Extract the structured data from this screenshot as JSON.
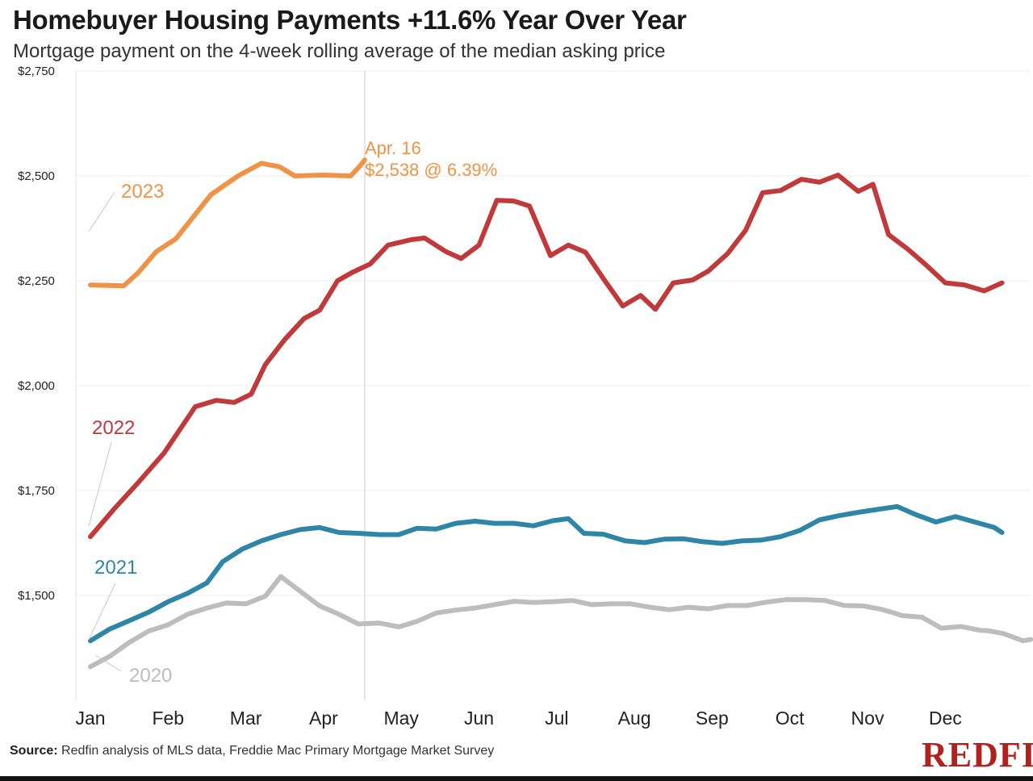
{
  "title": "Homebuyer Housing Payments +11.6% Year Over Year",
  "subtitle": "Mortgage payment on the 4-week rolling average of the median asking price",
  "source_label": "Source:",
  "source_text": " Redfin analysis of MLS data, Freddie Mac Primary Mortgage Market Survey",
  "logo": "REDFIN",
  "chart_data": {
    "type": "line",
    "title": "Homebuyer Housing Payments +11.6% Year Over Year",
    "subtitle": "Mortgage payment on the 4-week rolling average of the median asking price",
    "x_categories": [
      "Jan",
      "Feb",
      "Mar",
      "Apr",
      "May",
      "Jun",
      "Jul",
      "Aug",
      "Sep",
      "Oct",
      "Nov",
      "Dec"
    ],
    "y_ticks": [
      1500,
      1750,
      2000,
      2250,
      2500,
      2750
    ],
    "y_tick_labels": [
      "$1,500",
      "$1,750",
      "$2,000",
      "$2,250",
      "$2,500",
      "$2,750"
    ],
    "ylim": [
      1250,
      2750
    ],
    "grid": true,
    "annotation": {
      "line1": "Apr. 16",
      "line2": "$2,538 @ 6.39%",
      "date": "Apr. 16",
      "value": 2538,
      "rate": "6.39%"
    },
    "series": [
      {
        "name": "2023",
        "color": "#ef9346",
        "points": [
          [
            0.0,
            2240
          ],
          [
            0.43,
            2238
          ],
          [
            0.62,
            2270
          ],
          [
            0.85,
            2320
          ],
          [
            1.1,
            2350
          ],
          [
            1.55,
            2455
          ],
          [
            1.9,
            2500
          ],
          [
            2.2,
            2530
          ],
          [
            2.43,
            2522
          ],
          [
            2.63,
            2500
          ],
          [
            3.0,
            2502
          ],
          [
            3.35,
            2500
          ],
          [
            3.47,
            2524
          ],
          [
            3.53,
            2538
          ]
        ]
      },
      {
        "name": "2022",
        "color": "#c0393b",
        "points": [
          [
            0.0,
            1640
          ],
          [
            0.3,
            1705
          ],
          [
            0.62,
            1770
          ],
          [
            0.95,
            1840
          ],
          [
            1.35,
            1950
          ],
          [
            1.62,
            1965
          ],
          [
            1.85,
            1960
          ],
          [
            2.07,
            1980
          ],
          [
            2.25,
            2050
          ],
          [
            2.5,
            2110
          ],
          [
            2.75,
            2160
          ],
          [
            2.95,
            2180
          ],
          [
            3.18,
            2250
          ],
          [
            3.37,
            2270
          ],
          [
            3.6,
            2290
          ],
          [
            3.83,
            2335
          ],
          [
            4.13,
            2348
          ],
          [
            4.3,
            2352
          ],
          [
            4.57,
            2320
          ],
          [
            4.77,
            2303
          ],
          [
            5.0,
            2335
          ],
          [
            5.23,
            2442
          ],
          [
            5.45,
            2440
          ],
          [
            5.65,
            2428
          ],
          [
            5.92,
            2310
          ],
          [
            6.15,
            2335
          ],
          [
            6.37,
            2318
          ],
          [
            6.62,
            2250
          ],
          [
            6.85,
            2190
          ],
          [
            7.08,
            2215
          ],
          [
            7.27,
            2182
          ],
          [
            7.5,
            2245
          ],
          [
            7.75,
            2252
          ],
          [
            7.95,
            2273
          ],
          [
            8.2,
            2315
          ],
          [
            8.43,
            2370
          ],
          [
            8.65,
            2460
          ],
          [
            8.88,
            2465
          ],
          [
            9.15,
            2492
          ],
          [
            9.38,
            2485
          ],
          [
            9.62,
            2502
          ],
          [
            9.88,
            2463
          ],
          [
            10.07,
            2480
          ],
          [
            10.27,
            2360
          ],
          [
            10.52,
            2325
          ],
          [
            10.75,
            2288
          ],
          [
            11.0,
            2245
          ],
          [
            11.25,
            2240
          ],
          [
            11.5,
            2226
          ],
          [
            11.73,
            2245
          ]
        ]
      },
      {
        "name": "2021",
        "color": "#2e86a6",
        "points": [
          [
            0.0,
            1392
          ],
          [
            0.25,
            1420
          ],
          [
            0.5,
            1440
          ],
          [
            0.75,
            1460
          ],
          [
            1.0,
            1485
          ],
          [
            1.25,
            1505
          ],
          [
            1.5,
            1530
          ],
          [
            1.7,
            1580
          ],
          [
            1.95,
            1610
          ],
          [
            2.2,
            1630
          ],
          [
            2.45,
            1645
          ],
          [
            2.7,
            1657
          ],
          [
            2.95,
            1662
          ],
          [
            3.2,
            1650
          ],
          [
            3.45,
            1648
          ],
          [
            3.72,
            1645
          ],
          [
            3.97,
            1645
          ],
          [
            4.2,
            1660
          ],
          [
            4.45,
            1658
          ],
          [
            4.7,
            1672
          ],
          [
            4.95,
            1677
          ],
          [
            5.2,
            1672
          ],
          [
            5.45,
            1672
          ],
          [
            5.7,
            1666
          ],
          [
            5.95,
            1678
          ],
          [
            6.15,
            1683
          ],
          [
            6.35,
            1648
          ],
          [
            6.6,
            1646
          ],
          [
            6.88,
            1630
          ],
          [
            7.13,
            1626
          ],
          [
            7.38,
            1634
          ],
          [
            7.63,
            1635
          ],
          [
            7.88,
            1628
          ],
          [
            8.13,
            1624
          ],
          [
            8.38,
            1630
          ],
          [
            8.63,
            1632
          ],
          [
            8.88,
            1640
          ],
          [
            9.13,
            1655
          ],
          [
            9.38,
            1680
          ],
          [
            9.63,
            1690
          ],
          [
            9.88,
            1698
          ],
          [
            10.13,
            1705
          ],
          [
            10.38,
            1712
          ],
          [
            10.63,
            1692
          ],
          [
            10.88,
            1675
          ],
          [
            11.13,
            1688
          ],
          [
            11.38,
            1675
          ],
          [
            11.63,
            1662
          ],
          [
            11.73,
            1650
          ]
        ]
      },
      {
        "name": "2020",
        "color": "#bdbdbd",
        "points": [
          [
            0.0,
            1330
          ],
          [
            0.25,
            1355
          ],
          [
            0.5,
            1388
          ],
          [
            0.75,
            1415
          ],
          [
            1.0,
            1430
          ],
          [
            1.25,
            1455
          ],
          [
            1.5,
            1470
          ],
          [
            1.75,
            1482
          ],
          [
            2.0,
            1480
          ],
          [
            2.25,
            1498
          ],
          [
            2.45,
            1545
          ],
          [
            2.7,
            1510
          ],
          [
            2.95,
            1475
          ],
          [
            3.2,
            1455
          ],
          [
            3.45,
            1432
          ],
          [
            3.72,
            1434
          ],
          [
            3.97,
            1425
          ],
          [
            4.2,
            1438
          ],
          [
            4.45,
            1458
          ],
          [
            4.7,
            1465
          ],
          [
            4.95,
            1470
          ],
          [
            5.2,
            1478
          ],
          [
            5.45,
            1486
          ],
          [
            5.7,
            1483
          ],
          [
            5.95,
            1485
          ],
          [
            6.2,
            1488
          ],
          [
            6.45,
            1478
          ],
          [
            6.7,
            1480
          ],
          [
            6.95,
            1480
          ],
          [
            7.2,
            1472
          ],
          [
            7.45,
            1466
          ],
          [
            7.7,
            1472
          ],
          [
            7.95,
            1468
          ],
          [
            8.2,
            1476
          ],
          [
            8.45,
            1476
          ],
          [
            8.7,
            1484
          ],
          [
            8.95,
            1490
          ],
          [
            9.2,
            1490
          ],
          [
            9.45,
            1488
          ],
          [
            9.7,
            1476
          ],
          [
            9.95,
            1475
          ],
          [
            10.2,
            1466
          ],
          [
            10.45,
            1452
          ],
          [
            10.7,
            1448
          ],
          [
            10.95,
            1422
          ],
          [
            11.2,
            1426
          ],
          [
            11.45,
            1417
          ],
          [
            11.55,
            1416
          ],
          [
            11.75,
            1409
          ],
          [
            12.0,
            1392
          ],
          [
            12.1,
            1395
          ]
        ]
      }
    ]
  }
}
